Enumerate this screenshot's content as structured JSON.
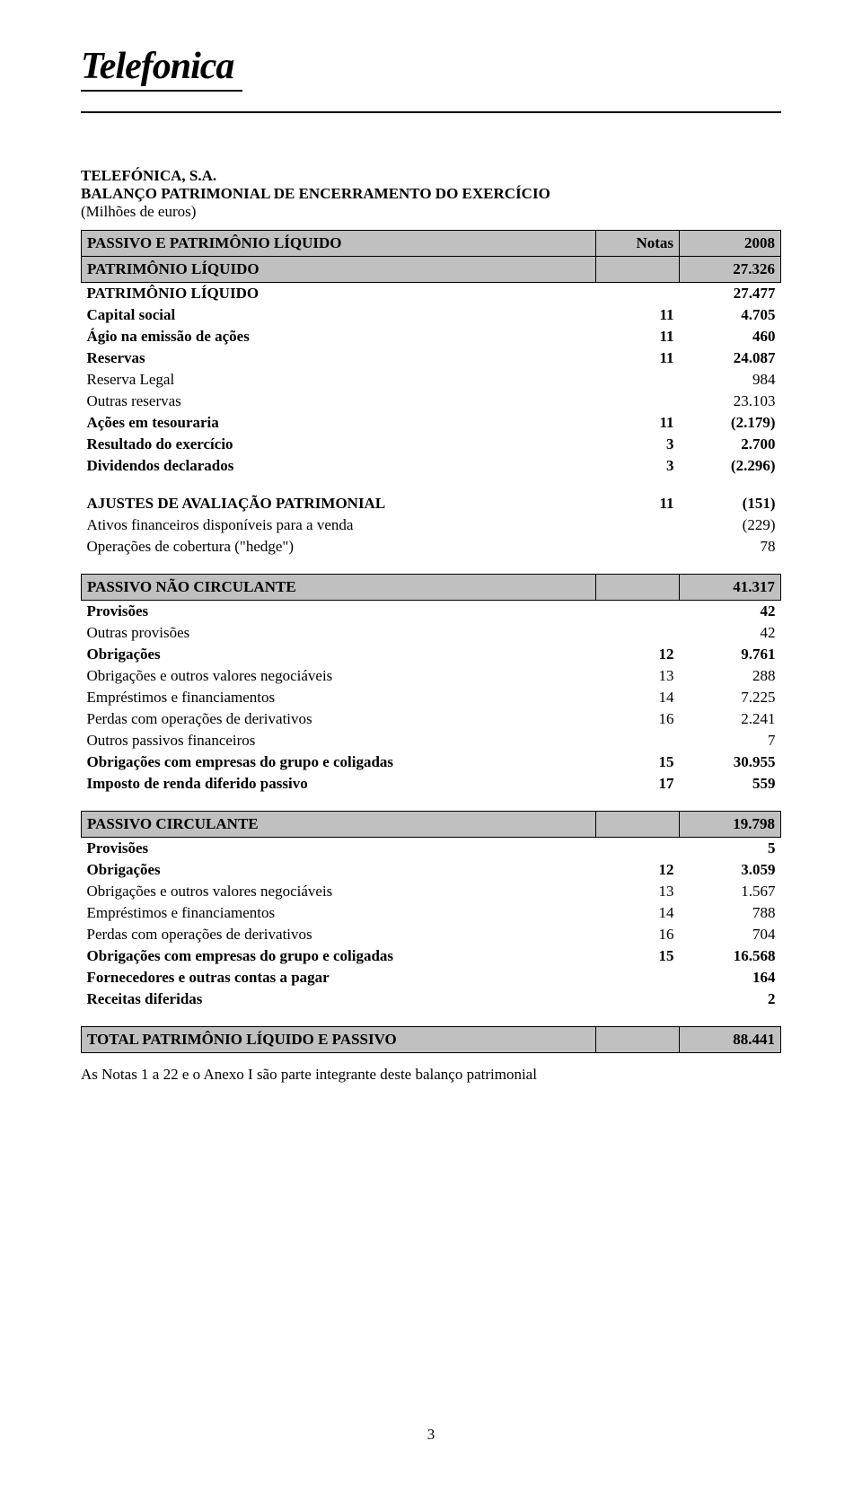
{
  "logo_text": "Telefonica",
  "company": "TELEFÓNICA, S.A.",
  "report_title": "BALANÇO PATRIMONIAL DE ENCERRAMENTO DO EXERCÍCIO",
  "subtitle": "(Milhões de euros)",
  "header": {
    "col1": "PASSIVO E PATRIMÔNIO LÍQUIDO",
    "col2": "Notas",
    "col3": "2008"
  },
  "section_equity": {
    "label": "PATRIMÔNIO LÍQUIDO",
    "value": "27.326"
  },
  "rows_equity": [
    {
      "label": "PATRIMÔNIO LÍQUIDO",
      "note": "",
      "value": "27.477",
      "bold": true
    },
    {
      "label": "Capital social",
      "note": "11",
      "value": "4.705",
      "bold": true
    },
    {
      "label": "Ágio na emissão de ações",
      "note": "11",
      "value": "460",
      "bold": true
    },
    {
      "label": "Reservas",
      "note": "11",
      "value": "24.087",
      "bold": true
    },
    {
      "label": "Reserva Legal",
      "note": "",
      "value": "984",
      "bold": false
    },
    {
      "label": "Outras reservas",
      "note": "",
      "value": "23.103",
      "bold": false
    },
    {
      "label": "Ações em tesouraria",
      "note": "11",
      "value": "(2.179)",
      "bold": true
    },
    {
      "label": "Resultado do exercício",
      "note": "3",
      "value": "2.700",
      "bold": true
    },
    {
      "label": "Dividendos declarados",
      "note": "3",
      "value": "(2.296)",
      "bold": true
    }
  ],
  "rows_adjust": [
    {
      "label": "AJUSTES DE AVALIAÇÃO PATRIMONIAL",
      "note": "11",
      "value": "(151)",
      "bold": true
    },
    {
      "label": "Ativos financeiros disponíveis para a venda",
      "note": "",
      "value": "(229)",
      "bold": false
    },
    {
      "label": "Operações de cobertura (\"hedge\")",
      "note": "",
      "value": "78",
      "bold": false
    }
  ],
  "section_noncurrent": {
    "label": "PASSIVO NÃO CIRCULANTE",
    "value": "41.317"
  },
  "rows_noncurrent": [
    {
      "label": "Provisões",
      "note": "",
      "value": "42",
      "bold": true
    },
    {
      "label": "Outras provisões",
      "note": "",
      "value": "42",
      "bold": false
    },
    {
      "label": "Obrigações",
      "note": "12",
      "value": "9.761",
      "bold": true
    },
    {
      "label": "Obrigações e outros valores negociáveis",
      "note": "13",
      "value": "288",
      "bold": false
    },
    {
      "label": "Empréstimos e financiamentos",
      "note": "14",
      "value": "7.225",
      "bold": false
    },
    {
      "label": "Perdas com operações de derivativos",
      "note": "16",
      "value": "2.241",
      "bold": false
    },
    {
      "label": "Outros passivos financeiros",
      "note": "",
      "value": "7",
      "bold": false
    },
    {
      "label": "Obrigações com empresas do grupo e coligadas",
      "note": "15",
      "value": "30.955",
      "bold": true
    },
    {
      "label": "Imposto de renda diferido passivo",
      "note": "17",
      "value": "559",
      "bold": true
    }
  ],
  "section_current": {
    "label": "PASSIVO CIRCULANTE",
    "value": "19.798"
  },
  "rows_current": [
    {
      "label": "Provisões",
      "note": "",
      "value": "5",
      "bold": true
    },
    {
      "label": "Obrigações",
      "note": "12",
      "value": "3.059",
      "bold": true
    },
    {
      "label": "Obrigações e outros valores negociáveis",
      "note": "13",
      "value": "1.567",
      "bold": false
    },
    {
      "label": "Empréstimos e financiamentos",
      "note": "14",
      "value": "788",
      "bold": false
    },
    {
      "label": "Perdas com operações de derivativos",
      "note": "16",
      "value": "704",
      "bold": false
    },
    {
      "label": "Obrigações com empresas do grupo e coligadas",
      "note": "15",
      "value": "16.568",
      "bold": true
    },
    {
      "label": "Fornecedores e outras contas a pagar",
      "note": "",
      "value": "164",
      "bold": true
    },
    {
      "label": "Receitas diferidas",
      "note": "",
      "value": "2",
      "bold": true
    }
  ],
  "section_total": {
    "label": "TOTAL PATRIMÔNIO LÍQUIDO E PASSIVO",
    "value": "88.441"
  },
  "footnote": "As Notas 1 a 22 e o Anexo I são parte integrante deste balanço patrimonial",
  "page_number": "3",
  "colors": {
    "section_bg": "#c0c0c0",
    "text": "#000000",
    "background": "#ffffff"
  },
  "fonts": {
    "body_family": "Times New Roman",
    "body_size_pt": 12,
    "logo_family": "Georgia italic",
    "logo_size_pt": 32
  }
}
